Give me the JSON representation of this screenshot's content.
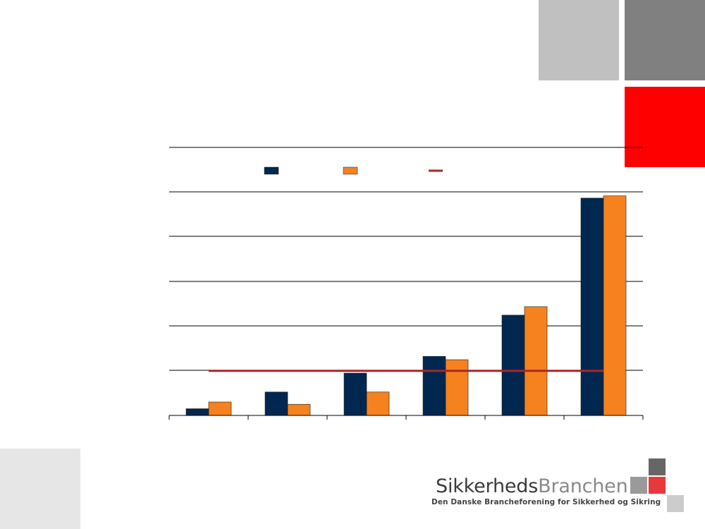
{
  "colors": {
    "series_dark_blue": "#00274f",
    "series_orange": "#f5821f",
    "reference_line": "#a9262b",
    "gridline": "#000000",
    "deco_light_gray": "#c0c0c0",
    "deco_mid_gray": "#808080",
    "deco_red": "#ff0000",
    "deco_pale_gray": "#e6e6e6"
  },
  "chart_data": {
    "type": "bar",
    "categories": [
      "",
      "",
      "",
      "",
      "",
      ""
    ],
    "series": [
      {
        "color": "#00274f",
        "values": [
          0.3,
          1.05,
          1.9,
          2.65,
          4.5,
          9.75
        ]
      },
      {
        "color": "#f5821f",
        "values": [
          0.6,
          0.5,
          1.05,
          2.5,
          4.88,
          9.85
        ]
      }
    ],
    "reference_line": {
      "value": 2.0,
      "color": "#a9262b"
    },
    "ylim": [
      0,
      12
    ],
    "y_gridline_step": 2,
    "grid": true,
    "legend": {
      "placement": "top",
      "items": [
        "dark-blue-swatch",
        "orange-swatch",
        "red-line-swatch"
      ]
    },
    "title": "",
    "xlabel": "",
    "ylabel": ""
  },
  "logo": {
    "word_part1": "Sikkerheds",
    "word_part2": "Branchen",
    "tagline": "Den Danske Brancheforening for Sikkerhed og Sikring"
  }
}
